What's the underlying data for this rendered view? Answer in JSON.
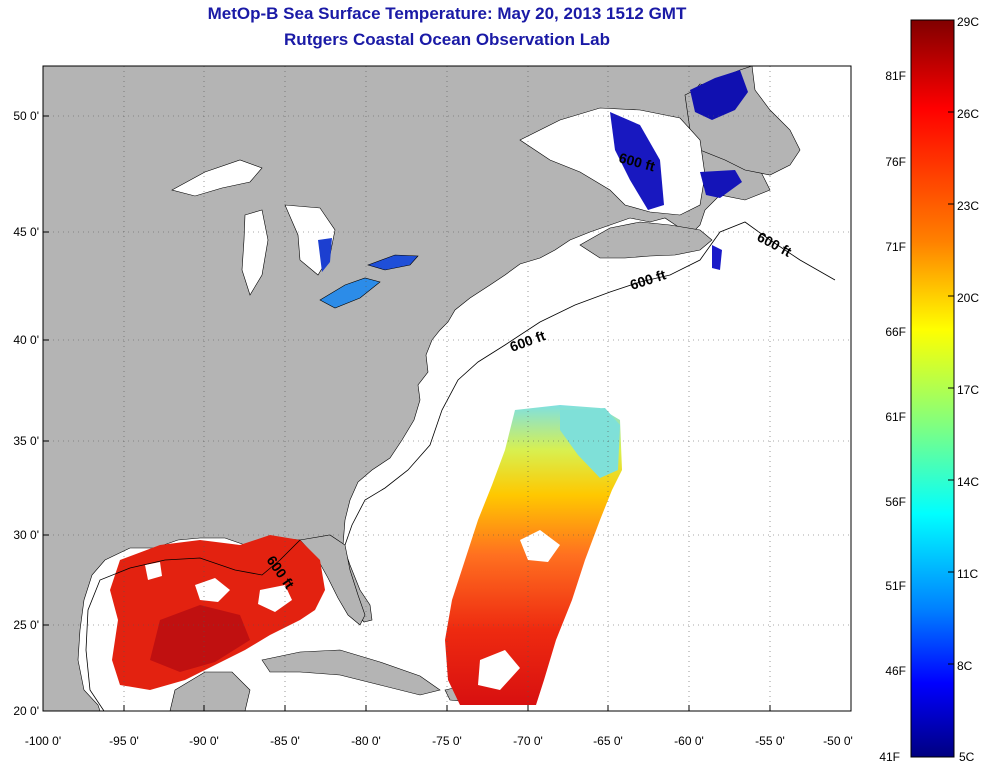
{
  "title": "MetOp-B Sea Surface Temperature:  May 20, 2013 1512 GMT",
  "subtitle": "Rutgers Coastal Ocean Observation Lab",
  "map": {
    "lon_range": [
      -100,
      -50
    ],
    "lat_range": [
      20,
      52.5
    ],
    "lon_ticks": [
      "-100 0'",
      "-95 0'",
      "-90 0'",
      "-85 0'",
      "-80 0'",
      "-75 0'",
      "-70 0'",
      "-65 0'",
      "-60 0'",
      "-55 0'",
      "-50 0'"
    ],
    "lat_ticks": [
      "50 0'",
      "45 0'",
      "40 0'",
      "35 0'",
      "30 0'",
      "25 0'",
      "20 0'"
    ],
    "contour_label": "600 ft",
    "land_color": "#b4b4b4",
    "no_data_color": "#ffffff"
  },
  "colorbar": {
    "celsius_labels": [
      "29C",
      "26C",
      "23C",
      "20C",
      "17C",
      "14C",
      "11C",
      "8C",
      "5C"
    ],
    "fahrenheit_labels": [
      "81F",
      "76F",
      "71F",
      "66F",
      "61F",
      "56F",
      "51F",
      "46F",
      "41F"
    ],
    "colors": [
      "#800000",
      "#ff0000",
      "#ff8000",
      "#ffff00",
      "#80ff80",
      "#00ffff",
      "#0080ff",
      "#0000ff",
      "#000080"
    ]
  }
}
